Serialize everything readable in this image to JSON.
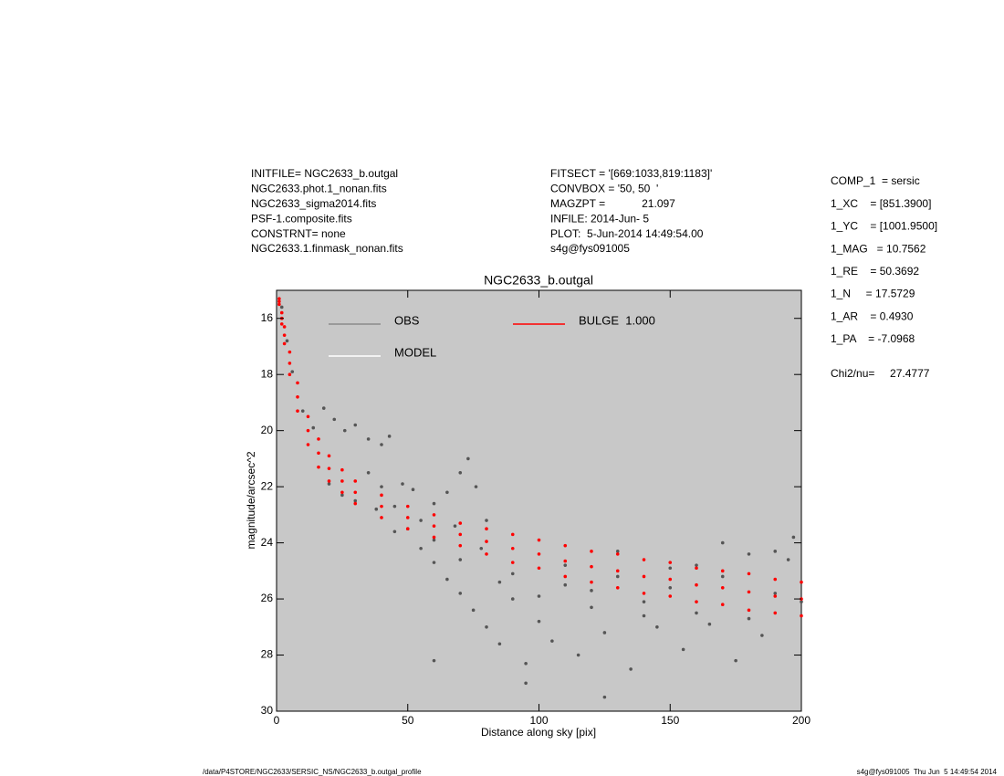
{
  "chart_data": {
    "type": "scatter",
    "title": "NGC2633_b.outgal",
    "x_label": "Distance along sky [pix]",
    "y_label": "magnitude/arcsec^2",
    "header_left": [
      "INITFILE= NGC2633_b.outgal",
      "NGC2633.phot.1_nonan.fits",
      "NGC2633_sigma2014.fits",
      "PSF-1.composite.fits",
      "CONSTRNT= none",
      "NGC2633.1.finmask_nonan.fits"
    ],
    "header_middle": [
      "FITSECT = '[669:1033,819:1183]'",
      "CONVBOX = '50, 50  '",
      "MAGZPT =            21.097",
      "INFILE: 2014-Jun- 5",
      "PLOT:  5-Jun-2014 14:49:54.00",
      "s4g@fys091005"
    ],
    "components": [
      "COMP_1  = sersic",
      "1_XC    = [851.3900]",
      "1_YC    = [1001.9500]",
      "1_MAG   = 10.7562",
      "1_RE    = 50.3692",
      "1_N     = 17.5729",
      "1_AR    = 0.4930",
      "1_PA    = -7.0968"
    ],
    "chi2": "Chi2/nu=     27.4777",
    "footer_left": "/data/P4STORE/NGC2633/SERSIC_NS/NGC2633_b.outgal_profile",
    "footer_right": "s4g@fys091005  Thu Jun  5 14:49:54 2014",
    "xlim": [
      0,
      200
    ],
    "xticks": [
      0,
      50,
      100,
      150,
      200
    ],
    "ylim": [
      30,
      15
    ],
    "yticks": [
      16,
      18,
      20,
      22,
      24,
      26,
      28,
      30
    ],
    "background": "#c8c8c8",
    "series": [
      {
        "name": "OBS",
        "color": "#555555",
        "legend_color": "#8a8a8a",
        "x": [
          2,
          4,
          6,
          10,
          14,
          18,
          22,
          26,
          30,
          35,
          40,
          43,
          20,
          25,
          30,
          38,
          45,
          50,
          55,
          60,
          65,
          70,
          73,
          76,
          80,
          55,
          60,
          65,
          70,
          75,
          80,
          85,
          90,
          95,
          100,
          105,
          110,
          115,
          120,
          125,
          130,
          135,
          140,
          145,
          150,
          155,
          160,
          165,
          170,
          175,
          180,
          185,
          190,
          195,
          200,
          90,
          110,
          130,
          150,
          170,
          190,
          197,
          60,
          70,
          85,
          100,
          120,
          140,
          160,
          180,
          45,
          35,
          48,
          52,
          68,
          78,
          95,
          125,
          60,
          40
        ],
        "values": [
          15.6,
          16.8,
          17.9,
          19.3,
          19.9,
          19.2,
          19.6,
          20.0,
          19.8,
          20.3,
          20.5,
          20.2,
          21.9,
          22.3,
          22.5,
          22.8,
          22.7,
          23.5,
          23.2,
          22.6,
          22.2,
          21.5,
          21.0,
          22.0,
          23.2,
          24.2,
          24.7,
          25.3,
          25.8,
          26.4,
          27.0,
          27.6,
          26.0,
          28.3,
          26.8,
          27.5,
          25.5,
          28.0,
          26.3,
          27.2,
          25.2,
          28.5,
          26.6,
          27.0,
          25.6,
          27.8,
          24.8,
          26.9,
          25.2,
          28.2,
          24.4,
          27.3,
          25.8,
          24.6,
          26.1,
          25.1,
          24.8,
          24.3,
          24.9,
          24.0,
          24.3,
          23.8,
          23.9,
          24.6,
          25.4,
          25.9,
          25.7,
          26.1,
          26.5,
          26.7,
          23.6,
          21.5,
          21.9,
          22.1,
          23.4,
          24.2,
          29.0,
          29.5,
          28.2,
          22.0
        ]
      },
      {
        "name": "MODEL",
        "color": "#ffffff",
        "x": [],
        "values": []
      },
      {
        "name": "BULGE  1.000",
        "color": "#ff0000",
        "x": [
          1,
          2,
          3,
          5,
          8,
          12,
          16,
          20,
          25,
          30,
          40,
          50,
          60,
          70,
          80,
          90,
          100,
          110,
          120,
          130,
          140,
          150,
          160,
          170,
          180,
          190,
          200,
          1,
          2,
          3,
          5,
          8,
          12,
          16,
          20,
          25,
          30,
          40,
          50,
          60,
          70,
          80,
          90,
          100,
          110,
          120,
          130,
          140,
          150,
          160,
          170,
          180,
          190,
          200,
          1,
          2,
          3,
          5,
          8,
          12,
          16,
          20,
          25,
          30,
          40,
          50,
          60,
          70,
          80,
          90,
          100,
          110,
          120,
          130,
          140,
          150,
          160,
          170,
          180,
          190,
          200
        ],
        "values": [
          15.3,
          15.8,
          16.3,
          17.2,
          18.3,
          19.5,
          20.3,
          20.9,
          21.4,
          21.8,
          22.3,
          22.7,
          23.0,
          23.3,
          23.5,
          23.7,
          23.9,
          24.1,
          24.3,
          24.4,
          24.6,
          24.7,
          24.9,
          25.0,
          25.1,
          25.3,
          25.4,
          15.5,
          16.2,
          16.9,
          18.0,
          19.3,
          20.5,
          21.3,
          21.8,
          22.2,
          22.6,
          23.1,
          23.5,
          23.8,
          24.1,
          24.4,
          24.7,
          24.9,
          25.2,
          25.4,
          25.6,
          25.8,
          25.9,
          26.1,
          26.2,
          26.4,
          26.5,
          26.6,
          15.4,
          16.0,
          16.6,
          17.6,
          18.8,
          20.0,
          20.8,
          21.35,
          21.8,
          22.2,
          22.7,
          23.1,
          23.4,
          23.7,
          23.95,
          24.2,
          24.4,
          24.65,
          24.85,
          25.0,
          25.2,
          25.3,
          25.5,
          25.6,
          25.75,
          25.9,
          26.0
        ]
      }
    ]
  }
}
